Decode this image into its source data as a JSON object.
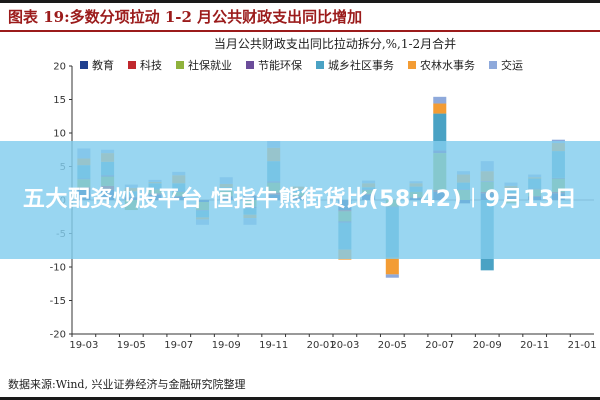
{
  "page": {
    "title": "图表 19:多数分项拉动 1-2 月公共财政支出同比增加",
    "source": "数据来源:Wind, 兴业证券经济与金融研究院整理",
    "banner": "五大配资炒股平台 恒指牛熊街货比(58:42)︱9月13日"
  },
  "colors": {
    "title": "#9b1b1b",
    "banner": "#82cdee"
  },
  "chart_data": {
    "type": "bar",
    "stacked": true,
    "title": "当月公共财政支出同比拉动拆分,%,1-2月合并",
    "ylim": [
      -20,
      20
    ],
    "yticks": [
      20,
      15,
      10,
      5,
      0,
      -5,
      -10,
      -15,
      -20
    ],
    "grid": false,
    "legend_position": "top",
    "categories": [
      "19-03",
      "19-04",
      "19-05",
      "19-06",
      "19-07",
      "19-08",
      "19-09",
      "19-10",
      "19-11",
      "19-12",
      "20-01",
      "20-03",
      "20-04",
      "20-05",
      "20-06",
      "20-07",
      "20-08",
      "20-09",
      "20-10",
      "20-11",
      "20-12",
      "21-01"
    ],
    "tick_labels": [
      "19-03",
      "19-05",
      "19-07",
      "19-09",
      "19-11",
      "20-01",
      "20-03",
      "20-05",
      "20-07",
      "20-09",
      "20-11",
      "21-01"
    ],
    "series": [
      {
        "name": "教育",
        "color": "#1f3f8f",
        "values": [
          1.5,
          1.5,
          0.4,
          0.8,
          0.5,
          -0.3,
          0.5,
          0.6,
          0.8,
          0.5,
          0.0,
          -1.5,
          0.8,
          0.0,
          0.3,
          1.2,
          -0.5,
          1.0,
          0.5,
          0.5,
          1.0,
          0.0
        ]
      },
      {
        "name": "科技",
        "color": "#c0282d",
        "values": [
          0.4,
          0.6,
          0.1,
          0.2,
          0.1,
          0.0,
          0.1,
          0.1,
          0.3,
          0.1,
          0.0,
          -0.2,
          0.1,
          0.0,
          0.1,
          0.3,
          0.0,
          0.2,
          0.1,
          0.1,
          0.2,
          0.0
        ]
      },
      {
        "name": "社保就业",
        "color": "#8fb23c",
        "values": [
          1.2,
          1.4,
          -1.5,
          0.6,
          0.6,
          -1.2,
          0.8,
          -1.0,
          1.5,
          0.5,
          0.0,
          -1.5,
          0.6,
          -1.0,
          0.8,
          5.5,
          1.5,
          1.5,
          -0.5,
          1.0,
          2.0,
          0.0
        ]
      },
      {
        "name": "节能环保",
        "color": "#6b4c9a",
        "values": [
          0.1,
          0.2,
          0.0,
          0.1,
          0.1,
          -0.1,
          0.0,
          -0.2,
          0.2,
          0.0,
          0.0,
          -0.2,
          0.1,
          -0.1,
          0.0,
          0.4,
          0.1,
          0.1,
          0.0,
          0.1,
          0.1,
          0.0
        ]
      },
      {
        "name": "城乡社区事务",
        "color": "#4aa2c4",
        "values": [
          2.0,
          2.0,
          0.8,
          0.8,
          1.2,
          -1.0,
          0.5,
          -1.0,
          3.0,
          0.5,
          0.0,
          -4.0,
          0.3,
          -7.5,
          0.8,
          5.5,
          1.0,
          -10.5,
          1.0,
          1.5,
          4.0,
          0.0
        ]
      },
      {
        "name": "农林水事务",
        "color": "#f39c34",
        "values": [
          1.0,
          1.3,
          0.5,
          0.2,
          1.2,
          -0.3,
          0.5,
          -0.5,
          2.0,
          0.4,
          0.0,
          -1.5,
          0.6,
          -2.5,
          0.5,
          1.5,
          1.2,
          1.5,
          0.5,
          0.2,
          1.2,
          0.0
        ]
      },
      {
        "name": "交运",
        "color": "#8ea9db",
        "values": [
          1.5,
          0.5,
          0.5,
          0.3,
          0.5,
          -0.8,
          1.0,
          -1.0,
          1.0,
          0.0,
          0.0,
          0.0,
          0.4,
          -0.5,
          0.3,
          1.0,
          0.5,
          1.5,
          0.5,
          0.4,
          0.5,
          0.0
        ]
      }
    ]
  }
}
